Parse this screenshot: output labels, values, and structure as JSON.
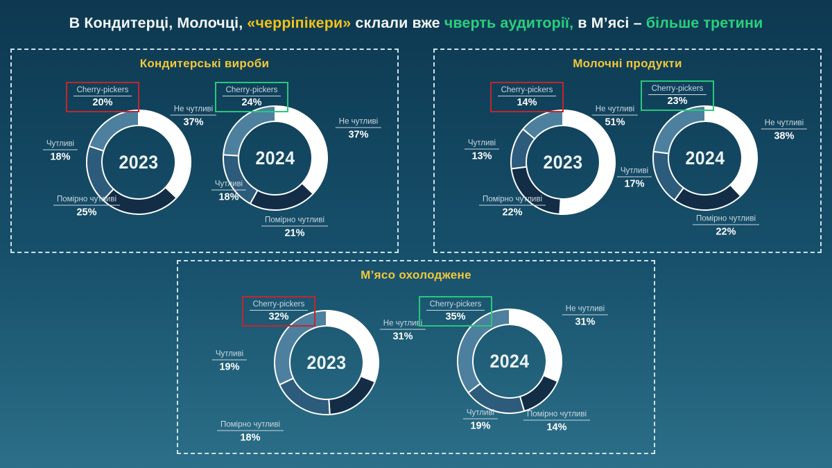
{
  "colors": {
    "background_top": "#0d3850",
    "background_bottom": "#2c6f88",
    "panel_border": "#cfe3ee",
    "title_text": "#f2f6f8",
    "title_yellow": "#f0c21a",
    "title_green": "#29d07e",
    "panel_title_yellow": "#f2c83c",
    "highlight_red": "#c3262c",
    "highlight_green": "#27c97c",
    "label_text": "#c9d8e2",
    "pct_text": "#ffffff",
    "year_text": "#edf4f8",
    "segment_cherry": "#4d7f9e",
    "segment_chutlyvi": "#2d5b7c",
    "segment_pomirno": "#132d47",
    "segment_ne": "#ffffff"
  },
  "main_title": {
    "segments": [
      {
        "text": "В Кондитерці, Молочці, ",
        "tone": "white"
      },
      {
        "text": "«черріпікери»",
        "tone": "yellow"
      },
      {
        "text": " склали вже ",
        "tone": "white"
      },
      {
        "text": "чверть аудиторії,",
        "tone": "green"
      },
      {
        "text": " в М’ясі – ",
        "tone": "white"
      },
      {
        "text": "більше третини",
        "tone": "green"
      }
    ]
  },
  "panels": [
    {
      "title": "Кондитерські вироби",
      "charts": [
        {
          "year": "2023",
          "highlight": "red",
          "segments": [
            {
              "id": "cherry",
              "label": "Cherry-pickers",
              "pct": "20%",
              "value": 20
            },
            {
              "id": "ne",
              "label": "Не чутливі",
              "pct": "37%",
              "value": 37
            },
            {
              "id": "chutlyvi",
              "label": "Чутливі",
              "pct": "18%",
              "value": 18
            },
            {
              "id": "pomirno",
              "label": "Помірно чутливі",
              "pct": "25%",
              "value": 25
            }
          ]
        },
        {
          "year": "2024",
          "highlight": "green",
          "segments": [
            {
              "id": "cherry",
              "label": "Cherry-pickers",
              "pct": "24%",
              "value": 24
            },
            {
              "id": "ne",
              "label": "Не чутливі",
              "pct": "37%",
              "value": 37
            },
            {
              "id": "chutlyvi",
              "label": "Чутливі",
              "pct": "18%",
              "value": 18
            },
            {
              "id": "pomirno",
              "label": "Помірно чутливі",
              "pct": "21%",
              "value": 21
            }
          ]
        }
      ]
    },
    {
      "title": "Молочні продукти",
      "charts": [
        {
          "year": "2023",
          "highlight": "red",
          "segments": [
            {
              "id": "cherry",
              "label": "Cherry-pickers",
              "pct": "14%",
              "value": 14
            },
            {
              "id": "ne",
              "label": "Не чутливі",
              "pct": "51%",
              "value": 51
            },
            {
              "id": "chutlyvi",
              "label": "Чутливі",
              "pct": "13%",
              "value": 13
            },
            {
              "id": "pomirno",
              "label": "Помірно чутливі",
              "pct": "22%",
              "value": 22
            }
          ]
        },
        {
          "year": "2024",
          "highlight": "green",
          "segments": [
            {
              "id": "cherry",
              "label": "Cherry-pickers",
              "pct": "23%",
              "value": 23
            },
            {
              "id": "ne",
              "label": "Не чутливі",
              "pct": "38%",
              "value": 38
            },
            {
              "id": "chutlyvi",
              "label": "Чутливі",
              "pct": "17%",
              "value": 17
            },
            {
              "id": "pomirno",
              "label": "Помірно чутливі",
              "pct": "22%",
              "value": 22
            }
          ]
        }
      ]
    },
    {
      "title": "М’ясо охолоджене",
      "charts": [
        {
          "year": "2023",
          "highlight": "red",
          "segments": [
            {
              "id": "cherry",
              "label": "Cherry-pickers",
              "pct": "32%",
              "value": 32
            },
            {
              "id": "ne",
              "label": "Не чутливі",
              "pct": "31%",
              "value": 31
            },
            {
              "id": "chutlyvi",
              "label": "Чутливі",
              "pct": "19%",
              "value": 19
            },
            {
              "id": "pomirno",
              "label": "Помірно чутливі",
              "pct": "18%",
              "value": 18
            }
          ]
        },
        {
          "year": "2024",
          "highlight": "green",
          "segments": [
            {
              "id": "cherry",
              "label": "Cherry-pickers",
              "pct": "35%",
              "value": 35
            },
            {
              "id": "ne",
              "label": "Не чутливі",
              "pct": "31%",
              "value": 31
            },
            {
              "id": "chutlyvi",
              "label": "Чутливі",
              "pct": "19%",
              "value": 19
            },
            {
              "id": "pomirno",
              "label": "Помірно чутливі",
              "pct": "14%",
              "value": 14
            }
          ]
        }
      ]
    }
  ],
  "chart_data": [
    {
      "type": "pie",
      "title": "Кондитерські вироби 2023",
      "labels": [
        "Cherry-pickers",
        "Не чутливі",
        "Чутливі",
        "Помірно чутливі"
      ],
      "values": [
        20,
        37,
        18,
        25
      ],
      "unit": "%",
      "highlighted": "Cherry-pickers",
      "legend_position": "around"
    },
    {
      "type": "pie",
      "title": "Кондитерські вироби 2024",
      "labels": [
        "Cherry-pickers",
        "Не чутливі",
        "Чутливі",
        "Помірно чутливі"
      ],
      "values": [
        24,
        37,
        18,
        21
      ],
      "unit": "%",
      "highlighted": "Cherry-pickers",
      "legend_position": "around"
    },
    {
      "type": "pie",
      "title": "Молочні продукти 2023",
      "labels": [
        "Cherry-pickers",
        "Не чутливі",
        "Чутливі",
        "Помірно чутливі"
      ],
      "values": [
        14,
        51,
        13,
        22
      ],
      "unit": "%",
      "highlighted": "Cherry-pickers",
      "legend_position": "around"
    },
    {
      "type": "pie",
      "title": "Молочні продукти 2024",
      "labels": [
        "Cherry-pickers",
        "Не чутливі",
        "Чутливі",
        "Помірно чутливі"
      ],
      "values": [
        23,
        38,
        17,
        22
      ],
      "unit": "%",
      "highlighted": "Cherry-pickers",
      "legend_position": "around"
    },
    {
      "type": "pie",
      "title": "М’ясо охолоджене 2023",
      "labels": [
        "Cherry-pickers",
        "Не чутливі",
        "Чутливі",
        "Помірно чутливі"
      ],
      "values": [
        32,
        31,
        19,
        18
      ],
      "unit": "%",
      "highlighted": "Cherry-pickers",
      "legend_position": "around"
    },
    {
      "type": "pie",
      "title": "М’ясо охолоджене 2024",
      "labels": [
        "Cherry-pickers",
        "Не чутливі",
        "Чутливі",
        "Помірно чутливі"
      ],
      "values": [
        35,
        31,
        19,
        14
      ],
      "unit": "%",
      "highlighted": "Cherry-pickers",
      "legend_position": "around"
    }
  ]
}
